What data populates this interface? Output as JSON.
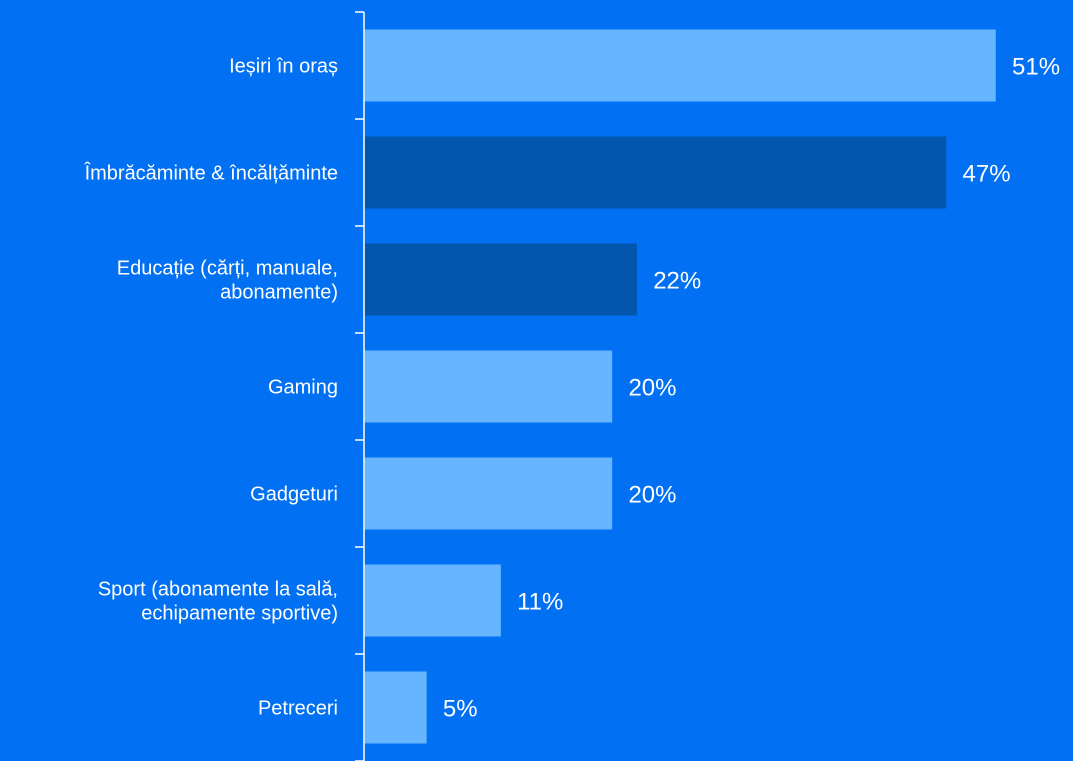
{
  "colors": {
    "background": "#0270F2",
    "bar_light": "#66B6FF",
    "bar_dark": "#0256AC",
    "axis": "#FFFFFF",
    "text": "#FFFFFF"
  },
  "chart_data": {
    "type": "bar",
    "orientation": "horizontal",
    "title": "",
    "xlabel": "",
    "ylabel": "",
    "grid": false,
    "legend": "none",
    "xlim": [
      0,
      55
    ],
    "value_suffix": "%",
    "categories": [
      [
        "Ieșiri în oraș"
      ],
      [
        "Îmbrăcăminte & încălțăminte"
      ],
      [
        "Educație (cărți, manuale,",
        "abonamente)"
      ],
      [
        "Gaming"
      ],
      [
        "Gadgeturi"
      ],
      [
        "Sport (abonamente la sală,",
        "echipamente sportive)"
      ],
      [
        "Petreceri"
      ]
    ],
    "values": [
      51,
      47,
      22,
      20,
      20,
      11,
      5
    ],
    "value_labels": [
      "51%",
      "47%",
      "22%",
      "20%",
      "20%",
      "11%",
      "5%"
    ],
    "bar_colors": [
      "#66B6FF",
      "#0256AC",
      "#0256AC",
      "#66B6FF",
      "#66B6FF",
      "#66B6FF",
      "#66B6FF"
    ]
  }
}
